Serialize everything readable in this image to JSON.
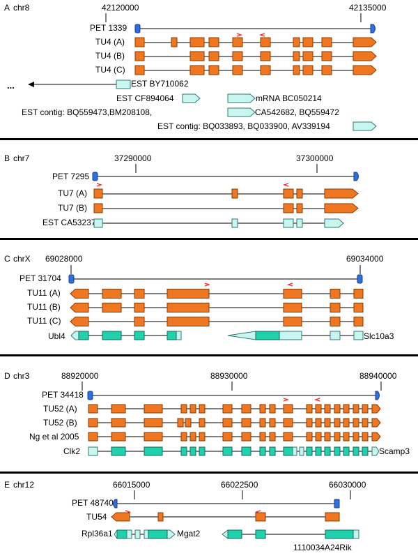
{
  "colors": {
    "tu_fill": "#f07722",
    "tu_stroke": "#8a3a00",
    "est_fill": "#c8f5f0",
    "est_stroke": "#2e7a74",
    "gene_fill": "#1fd1ac",
    "gene_stroke": "#156b5a",
    "pet_fill": "#2f6fe0",
    "line": "#000000",
    "arrow": "#ff2020",
    "divider": "#000000"
  },
  "panels": [
    {
      "id": "A",
      "letter": "A",
      "chrom": "chr8",
      "coords": [
        "42120000",
        "42135000"
      ],
      "pet": "PET 1339",
      "tracks": [
        {
          "label": "TU4 (A)",
          "kind": "tu"
        },
        {
          "label": "TU4 (B)",
          "kind": "tu"
        },
        {
          "label": "TU4 (C)",
          "kind": "tu"
        }
      ],
      "ests": [
        {
          "label": "EST BY710062",
          "kind": "est"
        },
        {
          "label": "EST CF894064",
          "kind": "est"
        },
        {
          "label": "mRNA BC050214",
          "kind": "est"
        },
        {
          "label": "EST contig: BQ559473,BM208108,",
          "kind": "est"
        },
        {
          "label": "CA542682, BQ559472",
          "kind": "est"
        },
        {
          "label": "EST contig: BQ033893, BQ033900, AV339194",
          "kind": "est"
        }
      ],
      "ellipsis": "..."
    },
    {
      "id": "B",
      "letter": "B",
      "chrom": "chr7",
      "coords": [
        "37290000",
        "37300000"
      ],
      "pet": "PET 7295",
      "tracks": [
        {
          "label": "TU7 (A)",
          "kind": "tu"
        },
        {
          "label": "TU7 (B)",
          "kind": "tu"
        },
        {
          "label": "EST CA532373",
          "kind": "est"
        }
      ]
    },
    {
      "id": "C",
      "letter": "C",
      "chrom": "chrX",
      "coords": [
        "69028000",
        "69034000"
      ],
      "pet": "PET 31704",
      "tracks": [
        {
          "label": "TU11 (A)",
          "kind": "tu"
        },
        {
          "label": "TU11 (B)",
          "kind": "tu"
        },
        {
          "label": "TU11 (C)",
          "kind": "tu"
        },
        {
          "label": "Ubl4",
          "kind": "gene"
        }
      ],
      "extra_labels": [
        "Slc10a3"
      ]
    },
    {
      "id": "D",
      "letter": "D",
      "chrom": "chr3",
      "coords": [
        "88920000",
        "88930000",
        "88940000"
      ],
      "pet": "PET 34418",
      "tracks": [
        {
          "label": "TU52 (A)",
          "kind": "tu"
        },
        {
          "label": "TU52 (B)",
          "kind": "tu"
        },
        {
          "label": "Ng et al 2005",
          "kind": "tu"
        },
        {
          "label": "Clk2",
          "kind": "gene"
        }
      ],
      "extra_labels": [
        "Scamp3"
      ]
    },
    {
      "id": "E",
      "letter": "E",
      "chrom": "chr12",
      "coords": [
        "66015000",
        "66022500",
        "66030000"
      ],
      "pet": "PET 48740",
      "tracks": [
        {
          "label": "TU54",
          "kind": "tu"
        },
        {
          "label": "Rpl36a1",
          "kind": "gene"
        }
      ],
      "extra_labels": [
        "Mgat2",
        "1110034A24Rik"
      ]
    }
  ]
}
